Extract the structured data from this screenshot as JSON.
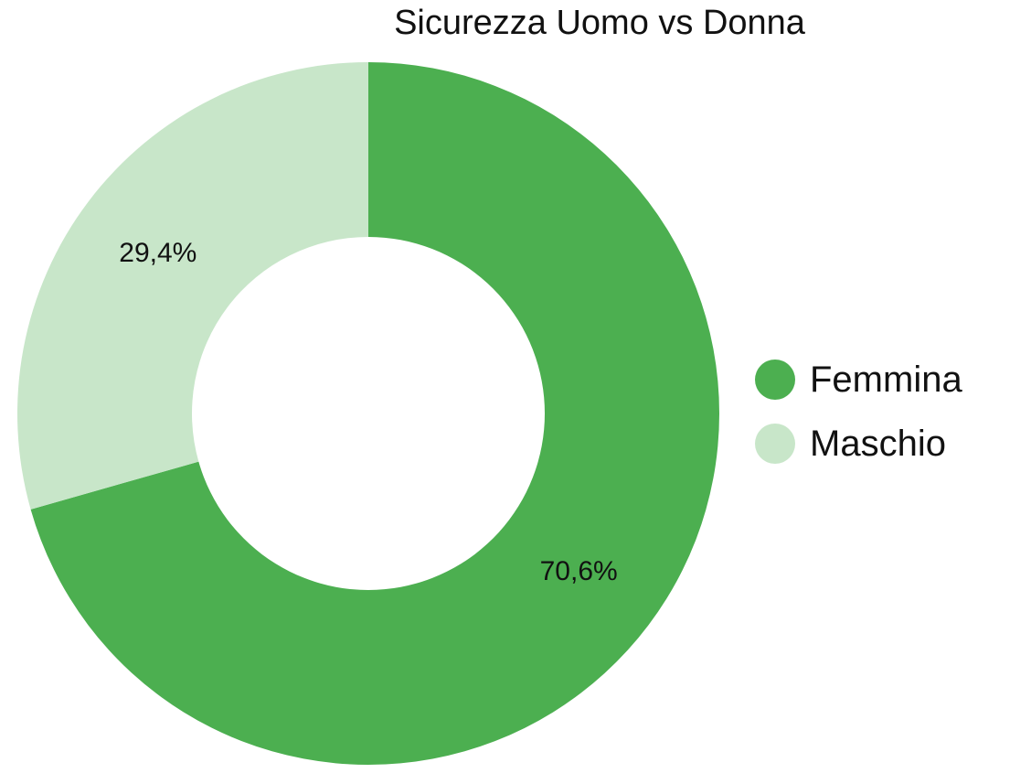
{
  "chart_data": {
    "type": "pie",
    "title": "Sicurezza Uomo vs Donna",
    "categories": [
      "Femmina",
      "Maschio"
    ],
    "values": [
      70.6,
      29.4
    ],
    "data_labels": [
      "70,6%",
      "29,4%"
    ],
    "colors": [
      "#4caf50",
      "#c8e6c9"
    ],
    "legend": {
      "position": "right",
      "entries": [
        "Femmina",
        "Maschio"
      ]
    }
  }
}
